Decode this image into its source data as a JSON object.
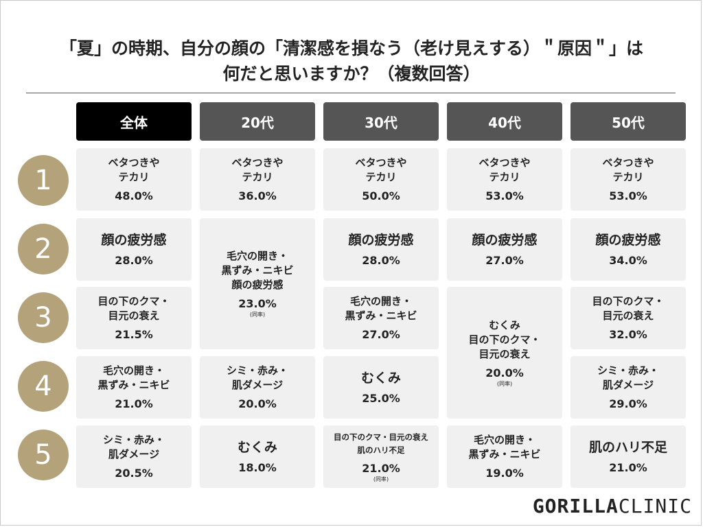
{
  "title_line1": "「夏」の時期、自分の顔の「清潔感を損なう（老け見えする）＂原因＂」は",
  "title_line2": "何だと思いますか？（複数回答）",
  "headers": [
    "全体",
    "20代",
    "30代",
    "40代",
    "50代"
  ],
  "ranks": [
    "1",
    "2",
    "3",
    "4",
    "5"
  ],
  "columns": [
    {
      "name": "全体",
      "cells": [
        {
          "label": [
            "ベタつきや",
            "テカリ"
          ],
          "pct": "48.0%"
        },
        {
          "label": [
            "顔の疲労感"
          ],
          "pct": "28.0%"
        },
        {
          "label": [
            "目の下のクマ・",
            "目元の衰え"
          ],
          "pct": "21.5%"
        },
        {
          "label": [
            "毛穴の開き・",
            "黒ずみ・ニキビ"
          ],
          "pct": "21.0%"
        },
        {
          "label": [
            "シミ・赤み・",
            "肌ダメージ"
          ],
          "pct": "20.5%"
        }
      ]
    },
    {
      "name": "20代",
      "cells": [
        {
          "label": [
            "ベタつきや",
            "テカリ"
          ],
          "pct": "36.0%"
        },
        {
          "label": [
            "毛穴の開き・",
            "黒ずみ・ニキビ",
            "顔の疲労感"
          ],
          "pct": "23.0%",
          "note": "(同率)"
        },
        {
          "label": [
            "シミ・赤み・",
            "肌ダメージ"
          ],
          "pct": "20.0%"
        },
        {
          "label": [
            "むくみ"
          ],
          "pct": "18.0%"
        }
      ]
    },
    {
      "name": "30代",
      "cells": [
        {
          "label": [
            "ベタつきや",
            "テカリ"
          ],
          "pct": "50.0%"
        },
        {
          "label": [
            "顔の疲労感"
          ],
          "pct": "28.0%"
        },
        {
          "label": [
            "毛穴の開き・",
            "黒ずみ・ニキビ"
          ],
          "pct": "27.0%"
        },
        {
          "label": [
            "むくみ"
          ],
          "pct": "25.0%"
        },
        {
          "label": [
            "目の下のクマ・目元の衰え",
            "肌のハリ不足"
          ],
          "pct": "21.0%",
          "note": "(同率)"
        }
      ]
    },
    {
      "name": "40代",
      "cells": [
        {
          "label": [
            "ベタつきや",
            "テカリ"
          ],
          "pct": "53.0%"
        },
        {
          "label": [
            "顔の疲労感"
          ],
          "pct": "27.0%"
        },
        {
          "label": [
            "むくみ",
            "目の下のクマ・",
            "目元の衰え"
          ],
          "pct": "20.0%",
          "note": "(同率)"
        },
        {
          "label": [
            "毛穴の開き・",
            "黒ずみ・ニキビ"
          ],
          "pct": "19.0%"
        }
      ]
    },
    {
      "name": "50代",
      "cells": [
        {
          "label": [
            "ベタつきや",
            "テカリ"
          ],
          "pct": "53.0%"
        },
        {
          "label": [
            "顔の疲労感"
          ],
          "pct": "34.0%"
        },
        {
          "label": [
            "目の下のクマ・",
            "目元の衰え"
          ],
          "pct": "32.0%"
        },
        {
          "label": [
            "シミ・赤み・",
            "肌ダメージ"
          ],
          "pct": "29.0%"
        },
        {
          "label": [
            "肌のハリ不足"
          ],
          "pct": "21.0%"
        }
      ]
    }
  ],
  "logo": {
    "part1": "GORILLA",
    "part2": "CLINIC"
  }
}
